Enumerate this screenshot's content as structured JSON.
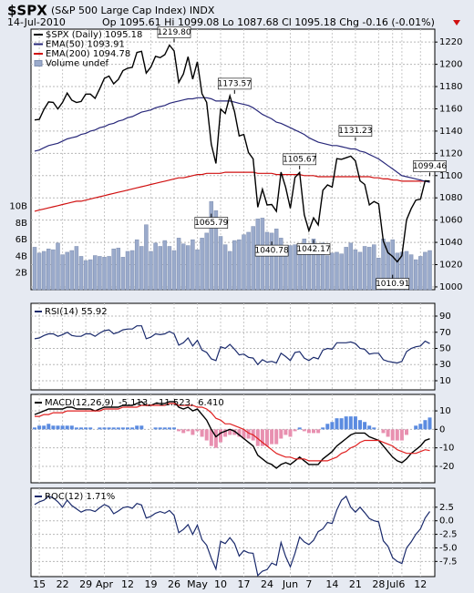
{
  "header": {
    "symbol": "$SPX",
    "name": "(S&P 500 Large Cap Index) INDX",
    "date": "14-Jul-2010",
    "quote": "Op 1095.61 Hi 1099.08 Lo 1087.68 Cl 1095.18 Chg -0.16 (-0.01%)"
  },
  "chart_data": [
    {
      "type": "line",
      "legend": "upper left",
      "grid": true,
      "ylim": [
        997.5,
        1231.6
      ],
      "yticks": [
        1000,
        1020,
        1040,
        1060,
        1080,
        1100,
        1120,
        1140,
        1160,
        1180,
        1200,
        1220
      ],
      "y2lim": [
        0,
        31.3
      ],
      "y2ticks": [
        {
          "value": 2,
          "label": "2B"
        },
        {
          "value": 4,
          "label": "4B"
        },
        {
          "value": 6,
          "label": "6B"
        },
        {
          "value": 8,
          "label": "8B"
        },
        {
          "value": 10,
          "label": "10B"
        }
      ],
      "series": [
        {
          "name": "Volume undef",
          "type": "bar",
          "axis": "y2",
          "color": "#9aaacb",
          "values": [
            5.1,
            4.4,
            4.6,
            4.9,
            4.8,
            5.6,
            4.2,
            4.5,
            4.7,
            5.2,
            4.0,
            3.5,
            3.6,
            4.1,
            4.0,
            3.9,
            4.0,
            4.9,
            5.0,
            3.9,
            4.6,
            4.7,
            6.0,
            5.2,
            7.8,
            4.6,
            5.6,
            5.2,
            5.9,
            5.2,
            4.7,
            6.2,
            5.5,
            5.3,
            6.0,
            4.8,
            6.2,
            6.8,
            10.6,
            9.5,
            6.4,
            5.4,
            4.6,
            5.9,
            6.0,
            6.6,
            6.9,
            7.6,
            8.5,
            8.6,
            6.9,
            6.8,
            7.3,
            6.2,
            5.2,
            5.3,
            5.4,
            5.4,
            6.1,
            5.3,
            6.1,
            5.4,
            5.6,
            4.1,
            4.4,
            4.5,
            4.3,
            5.1,
            5.6,
            4.8,
            4.5,
            5.2,
            5.1,
            5.4,
            3.8,
            6.1,
            5.7,
            6.0,
            4.4,
            4.5,
            4.6,
            4.2,
            3.6,
            4.0,
            4.5,
            4.7
          ]
        },
        {
          "name": "EMA(200) 1094.78",
          "color": "#d01010",
          "values": [
            1068,
            1069,
            1070,
            1071,
            1072,
            1073,
            1074,
            1075,
            1076,
            1077,
            1077,
            1078,
            1079,
            1080,
            1081,
            1082,
            1083,
            1084,
            1085,
            1086,
            1087,
            1088,
            1089,
            1090,
            1091,
            1092,
            1093,
            1094,
            1095,
            1096,
            1097,
            1098,
            1098,
            1099,
            1100,
            1101,
            1101,
            1102,
            1102,
            1102,
            1102,
            1103,
            1103,
            1103,
            1103,
            1103,
            1103,
            1103,
            1102,
            1102,
            1102,
            1102,
            1101,
            1101,
            1101,
            1101,
            1101,
            1101,
            1100,
            1100,
            1100,
            1099,
            1099,
            1099,
            1099,
            1099,
            1099,
            1099,
            1099,
            1099,
            1099,
            1099,
            1099,
            1098,
            1098,
            1097,
            1097,
            1096,
            1096,
            1095,
            1095,
            1095,
            1095,
            1095,
            1095,
            1094.78
          ]
        },
        {
          "name": "EMA(50) 1093.91",
          "color": "#28287a",
          "values": [
            1122,
            1123,
            1125,
            1127,
            1128,
            1129,
            1131,
            1133,
            1134,
            1135,
            1137,
            1138,
            1140,
            1141,
            1143,
            1144,
            1146,
            1147,
            1149,
            1150,
            1152,
            1153,
            1155,
            1157,
            1158,
            1159,
            1161,
            1162,
            1163,
            1165,
            1166,
            1167,
            1168,
            1169,
            1169,
            1170,
            1170,
            1170,
            1169,
            1167,
            1167,
            1167,
            1167,
            1166,
            1165,
            1164,
            1163,
            1161,
            1158,
            1155,
            1153,
            1151,
            1148,
            1147,
            1145,
            1143,
            1141,
            1139,
            1137,
            1134,
            1132,
            1130,
            1129,
            1128,
            1127,
            1127,
            1126,
            1125,
            1124,
            1124,
            1122,
            1121,
            1119,
            1117,
            1115,
            1112,
            1109,
            1106,
            1103,
            1100,
            1099,
            1098,
            1097,
            1096,
            1095,
            1093.91
          ]
        },
        {
          "name": "$SPX (Daily) 1095.18",
          "color": "#000000",
          "values": [
            1149.99,
            1150.51,
            1159.46,
            1166.21,
            1165.83,
            1159.9,
            1165.81,
            1174.17,
            1167.72,
            1165.73,
            1166.59,
            1173.22,
            1173.27,
            1169.43,
            1178.1,
            1187.44,
            1189.44,
            1182.45,
            1186.44,
            1194.37,
            1196.48,
            1197.3,
            1210.65,
            1211.67,
            1192.13,
            1197.52,
            1207.17,
            1205.94,
            1208.67,
            1217.28,
            1212.05,
            1183.71,
            1191.36,
            1206.78,
            1186.69,
            1202.26,
            1173.6,
            1165.9,
            1128.15,
            1110.88,
            1159.73,
            1155.79,
            1171.67,
            1157.44,
            1135.68,
            1136.94,
            1120.8,
            1115.05,
            1071.59,
            1087.69,
            1073.65,
            1074.03,
            1067.95,
            1103.06,
            1089.41,
            1070.71,
            1098.38,
            1102.83,
            1064.88,
            1050.47,
            1062.0,
            1055.69,
            1086.84,
            1091.6,
            1089.63,
            1115.23,
            1114.61,
            1116.04,
            1117.51,
            1113.2,
            1095.31,
            1092.04,
            1073.69,
            1076.76,
            1074.57,
            1041.24,
            1030.71,
            1027.37,
            1022.58,
            1028.06,
            1060.27,
            1070.25,
            1077.96,
            1078.75,
            1095.34,
            1095.18
          ]
        }
      ],
      "annotations": [
        {
          "value": 1219.8,
          "label": "1219.80"
        },
        {
          "value": 1173.57,
          "label": "1173.57"
        },
        {
          "value": 1065.79,
          "label": "1065.79"
        },
        {
          "value": 1040.78,
          "label": "1040.78"
        },
        {
          "value": 1042.17,
          "label": "1042.17"
        },
        {
          "value": 1105.67,
          "label": "1105.67"
        },
        {
          "value": 1131.23,
          "label": "1131.23"
        },
        {
          "value": 1010.91,
          "label": "1010.91"
        },
        {
          "value": 1099.46,
          "label": "1099.46"
        }
      ]
    },
    {
      "type": "line",
      "title": "RSI(14) 55.92",
      "grid": true,
      "ylim": [
        -1.3,
        105.8
      ],
      "yticks": [
        10,
        30,
        50,
        70,
        90
      ],
      "series": [
        {
          "color": "#1a2a6c",
          "values": [
            62,
            63,
            66,
            68,
            68,
            65,
            67,
            70,
            66,
            65,
            65,
            68,
            68,
            65,
            69,
            72,
            73,
            68,
            70,
            73,
            74,
            74,
            78,
            78,
            62,
            64,
            68,
            67,
            68,
            71,
            68,
            54,
            57,
            63,
            53,
            60,
            48,
            45,
            37,
            35,
            52,
            50,
            55,
            49,
            42,
            43,
            39,
            38,
            30,
            36,
            33,
            34,
            32,
            44,
            40,
            35,
            45,
            46,
            38,
            35,
            39,
            37,
            48,
            50,
            49,
            57,
            57,
            57,
            58,
            56,
            50,
            49,
            43,
            44,
            44,
            36,
            34,
            33,
            32,
            34,
            46,
            50,
            52,
            53,
            59,
            55.92
          ]
        }
      ]
    },
    {
      "type": "line",
      "title": "MACD(12,26,9)",
      "legend": "inline",
      "grid": true,
      "ylim": [
        -28.9,
        18.9
      ],
      "yticks": [
        -20,
        -10,
        0,
        10
      ],
      "series": [
        {
          "name": "6.410",
          "type": "bar",
          "color": "#5b8be0",
          "negative_color": "#e890b0",
          "values": [
            1,
            2,
            2,
            3,
            2,
            2,
            2,
            2,
            2,
            1,
            1,
            1,
            1,
            0,
            1,
            1,
            1,
            1,
            1,
            1,
            1,
            1,
            2,
            2,
            0,
            0,
            1,
            1,
            1,
            1,
            1,
            -1,
            -2,
            -1,
            -3,
            -1,
            -4,
            -6,
            -9,
            -10,
            -7,
            -4,
            -3,
            -3,
            -4,
            -5,
            -5,
            -6,
            -9,
            -9,
            -9,
            -8,
            -8,
            -5,
            -3,
            -4,
            -1,
            1,
            -1,
            -2,
            -2,
            -2,
            1,
            3,
            4,
            6,
            6,
            7,
            7,
            7,
            5,
            4,
            2,
            1,
            0,
            -2,
            -4,
            -6,
            -6,
            -6,
            -3,
            0,
            2,
            3,
            5,
            6.41
          ]
        },
        {
          "name": "-5.113,",
          "color": "#000000",
          "values": [
            8,
            9,
            10,
            11,
            11,
            11,
            11,
            12,
            12,
            11,
            11,
            11,
            11,
            10,
            11,
            12,
            12,
            12,
            12,
            13,
            13,
            13,
            14,
            15,
            13,
            13,
            14,
            14,
            14,
            15,
            15,
            12,
            11,
            12,
            10,
            11,
            8,
            5,
            0,
            -4,
            -2,
            -1,
            0,
            -1,
            -3,
            -5,
            -7,
            -9,
            -14,
            -16,
            -18,
            -19,
            -21,
            -19,
            -18,
            -19,
            -17,
            -15,
            -17,
            -19,
            -19,
            -19,
            -16,
            -14,
            -12,
            -9,
            -7,
            -5,
            -3,
            -2,
            -2,
            -2,
            -4,
            -5,
            -6,
            -9,
            -12,
            -15,
            -17,
            -18,
            -16,
            -13,
            -11,
            -9,
            -6,
            -5.113
          ]
        },
        {
          "name": "-11.523,",
          "color": "#e02020",
          "values": [
            7,
            7,
            8,
            8,
            9,
            9,
            9,
            10,
            10,
            10,
            10,
            10,
            10,
            10,
            10,
            11,
            11,
            11,
            11,
            12,
            12,
            12,
            12,
            13,
            13,
            13,
            13,
            13,
            13,
            14,
            14,
            13,
            13,
            13,
            13,
            12,
            12,
            11,
            9,
            6,
            5,
            3,
            3,
            2,
            1,
            0,
            -2,
            -3,
            -5,
            -7,
            -9,
            -11,
            -13,
            -14,
            -15,
            -15,
            -16,
            -16,
            -16,
            -17,
            -17,
            -17,
            -17,
            -17,
            -16,
            -15,
            -13,
            -12,
            -10,
            -9,
            -7,
            -6,
            -6,
            -6,
            -6,
            -7,
            -8,
            -9,
            -11,
            -12,
            -13,
            -13,
            -13,
            -12,
            -11,
            -11.523
          ]
        }
      ]
    },
    {
      "type": "line",
      "title": "ROC(12) 1.71%",
      "grid": true,
      "ylim": [
        -10.3,
        6.0
      ],
      "yticks": [
        {
          "value": -7.5,
          "label": "-7.5"
        },
        {
          "value": -5,
          "label": "-5.0"
        },
        {
          "value": -2.5,
          "label": "-2.5"
        },
        {
          "value": 0,
          "label": "0.0"
        },
        {
          "value": 2.5,
          "label": "2.5"
        }
      ],
      "categories": [
        null,
        "15",
        null,
        null,
        null,
        null,
        "22",
        null,
        null,
        null,
        null,
        "29",
        null,
        null,
        null,
        "Apr",
        null,
        null,
        null,
        null,
        "12",
        null,
        null,
        null,
        null,
        "19",
        null,
        null,
        null,
        null,
        "26",
        null,
        null,
        null,
        null,
        "May",
        null,
        null,
        null,
        null,
        "10",
        null,
        null,
        null,
        null,
        "17",
        null,
        null,
        null,
        null,
        "24",
        null,
        null,
        null,
        null,
        "Jun",
        null,
        null,
        null,
        "7",
        null,
        null,
        null,
        null,
        "14",
        null,
        null,
        null,
        null,
        "21",
        null,
        null,
        null,
        null,
        "28",
        null,
        null,
        "Jul",
        null,
        "6",
        null,
        null,
        null,
        "12",
        null,
        null
      ],
      "series": [
        {
          "color": "#1a2a6c",
          "values": [
            3.0,
            3.5,
            3.8,
            4.5,
            4.2,
            3.5,
            2.5,
            3.8,
            2.8,
            2.2,
            1.6,
            2.0,
            2.0,
            1.7,
            2.4,
            3.0,
            2.6,
            1.3,
            1.8,
            2.4,
            2.6,
            2.3,
            3.2,
            2.9,
            0.5,
            0.8,
            1.4,
            1.7,
            1.4,
            1.9,
            1.0,
            -2.2,
            -1.6,
            -0.7,
            -2.5,
            -0.8,
            -3.5,
            -4.5,
            -6.9,
            -8.9,
            -3.8,
            -4.2,
            -3.1,
            -4.2,
            -6.5,
            -5.5,
            -5.9,
            -6.0,
            -10.1,
            -9.3,
            -9.0,
            -7.8,
            -8.2,
            -4.0,
            -6.6,
            -8.5,
            -6.0,
            -3.0,
            -3.9,
            -4.4,
            -3.6,
            -2.0,
            -1.5,
            -0.3,
            -0.5,
            2.0,
            3.8,
            4.5,
            2.5,
            1.6,
            2.5,
            1.5,
            0.4,
            0.0,
            -0.2,
            -3.7,
            -4.7,
            -6.8,
            -7.5,
            -7.9,
            -5.0,
            -3.9,
            -2.5,
            -1.5,
            0.5,
            1.71
          ]
        }
      ]
    }
  ]
}
